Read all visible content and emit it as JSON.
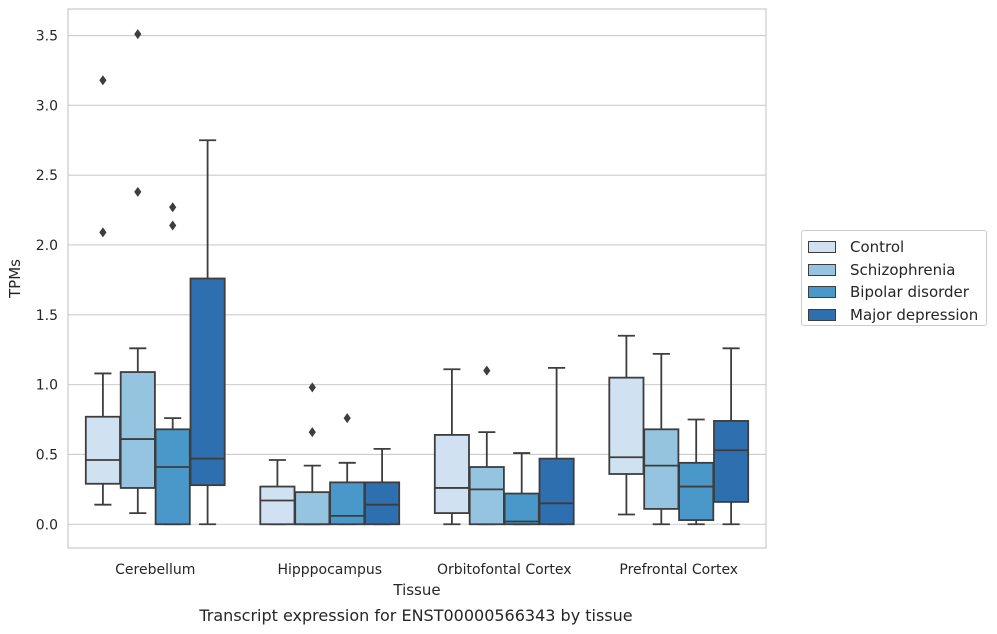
{
  "chart_data": {
    "type": "box",
    "caption": "Transcript expression for ENST00000566343 by tissue",
    "xlabel": "Tissue",
    "ylabel": "TPMs",
    "ylim": [
      -0.17,
      3.69
    ],
    "yticks": [
      "0.0",
      "0.5",
      "1.0",
      "1.5",
      "2.0",
      "2.5",
      "3.0",
      "3.5"
    ],
    "grid": true,
    "legend_position": "right",
    "categories": [
      "Cerebellum",
      "Hipppocampus",
      "Orbitofontal Cortex",
      "Prefrontal Cortex"
    ],
    "series": [
      {
        "name": "Control",
        "color": "#d0e1f2",
        "boxes": [
          {
            "whisker_low": 0.14,
            "q1": 0.29,
            "median": 0.46,
            "q3": 0.77,
            "whisker_high": 1.08,
            "outliers": [
              3.18,
              2.09
            ]
          },
          {
            "whisker_low": 0.0,
            "q1": 0.0,
            "median": 0.17,
            "q3": 0.27,
            "whisker_high": 0.46,
            "outliers": []
          },
          {
            "whisker_low": 0.0,
            "q1": 0.08,
            "median": 0.26,
            "q3": 0.64,
            "whisker_high": 1.11,
            "outliers": []
          },
          {
            "whisker_low": 0.07,
            "q1": 0.36,
            "median": 0.48,
            "q3": 1.05,
            "whisker_high": 1.35,
            "outliers": []
          }
        ]
      },
      {
        "name": "Schizophrenia",
        "color": "#94c4df",
        "boxes": [
          {
            "whisker_low": 0.08,
            "q1": 0.26,
            "median": 0.61,
            "q3": 1.09,
            "whisker_high": 1.26,
            "outliers": [
              3.51,
              2.38
            ]
          },
          {
            "whisker_low": 0.0,
            "q1": 0.0,
            "median": 0.0,
            "q3": 0.23,
            "whisker_high": 0.42,
            "outliers": [
              0.98,
              0.66
            ]
          },
          {
            "whisker_low": 0.0,
            "q1": 0.0,
            "median": 0.25,
            "q3": 0.41,
            "whisker_high": 0.66,
            "outliers": [
              1.1
            ]
          },
          {
            "whisker_low": 0.0,
            "q1": 0.11,
            "median": 0.42,
            "q3": 0.68,
            "whisker_high": 1.22,
            "outliers": []
          }
        ]
      },
      {
        "name": "Bipolar disorder",
        "color": "#4a98c9",
        "boxes": [
          {
            "whisker_low": 0.0,
            "q1": 0.0,
            "median": 0.41,
            "q3": 0.68,
            "whisker_high": 0.76,
            "outliers": [
              2.27,
              2.14
            ]
          },
          {
            "whisker_low": 0.0,
            "q1": 0.0,
            "median": 0.06,
            "q3": 0.3,
            "whisker_high": 0.44,
            "outliers": [
              0.76
            ]
          },
          {
            "whisker_low": 0.0,
            "q1": 0.0,
            "median": 0.02,
            "q3": 0.22,
            "whisker_high": 0.51,
            "outliers": []
          },
          {
            "whisker_low": 0.0,
            "q1": 0.03,
            "median": 0.27,
            "q3": 0.44,
            "whisker_high": 0.75,
            "outliers": []
          }
        ]
      },
      {
        "name": "Major depression",
        "color": "#2e6fb0",
        "boxes": [
          {
            "whisker_low": 0.0,
            "q1": 0.28,
            "median": 0.47,
            "q3": 1.76,
            "whisker_high": 2.75,
            "outliers": []
          },
          {
            "whisker_low": 0.0,
            "q1": 0.0,
            "median": 0.14,
            "q3": 0.3,
            "whisker_high": 0.54,
            "outliers": []
          },
          {
            "whisker_low": 0.0,
            "q1": 0.0,
            "median": 0.15,
            "q3": 0.47,
            "whisker_high": 1.12,
            "outliers": []
          },
          {
            "whisker_low": 0.0,
            "q1": 0.16,
            "median": 0.53,
            "q3": 0.74,
            "whisker_high": 1.26,
            "outliers": []
          }
        ]
      }
    ]
  }
}
